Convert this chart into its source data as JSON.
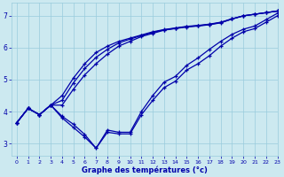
{
  "xlabel": "Graphe des températures (°c)",
  "xlim": [
    -0.5,
    23
  ],
  "ylim": [
    2.6,
    7.4
  ],
  "yticks": [
    3,
    4,
    5,
    6,
    7
  ],
  "xticks": [
    0,
    1,
    2,
    3,
    4,
    5,
    6,
    7,
    8,
    9,
    10,
    11,
    12,
    13,
    14,
    15,
    16,
    17,
    18,
    19,
    20,
    21,
    22,
    23
  ],
  "bg_color": "#cce9f0",
  "line_color": "#0000aa",
  "grid_color": "#99ccdd",
  "series": [
    [
      3.65,
      4.1,
      3.9,
      4.2,
      3.8,
      3.5,
      3.2,
      2.85,
      3.35,
      3.3,
      3.3,
      3.9,
      4.35,
      4.75,
      4.95,
      5.3,
      5.5,
      5.75,
      6.05,
      6.3,
      6.5,
      6.6,
      6.8,
      7.0
    ],
    [
      3.65,
      4.1,
      3.9,
      4.2,
      3.85,
      3.6,
      3.28,
      2.85,
      3.42,
      3.35,
      3.35,
      4.0,
      4.5,
      4.92,
      5.1,
      5.45,
      5.68,
      5.95,
      6.2,
      6.42,
      6.58,
      6.68,
      6.88,
      7.08
    ],
    [
      3.65,
      4.1,
      3.9,
      4.2,
      4.2,
      4.7,
      5.15,
      5.5,
      5.8,
      6.05,
      6.2,
      6.35,
      6.45,
      6.55,
      6.6,
      6.65,
      6.68,
      6.72,
      6.78,
      6.9,
      7.0,
      7.05,
      7.1,
      7.15
    ],
    [
      3.65,
      4.1,
      3.9,
      4.2,
      4.35,
      4.9,
      5.35,
      5.7,
      5.95,
      6.15,
      6.27,
      6.38,
      6.48,
      6.56,
      6.61,
      6.66,
      6.69,
      6.73,
      6.79,
      6.9,
      7.0,
      7.05,
      7.1,
      7.15
    ],
    [
      3.65,
      4.1,
      3.9,
      4.2,
      4.5,
      5.05,
      5.5,
      5.85,
      6.05,
      6.2,
      6.3,
      6.4,
      6.5,
      6.57,
      6.62,
      6.67,
      6.7,
      6.74,
      6.8,
      6.91,
      7.0,
      7.05,
      7.1,
      7.15
    ]
  ]
}
